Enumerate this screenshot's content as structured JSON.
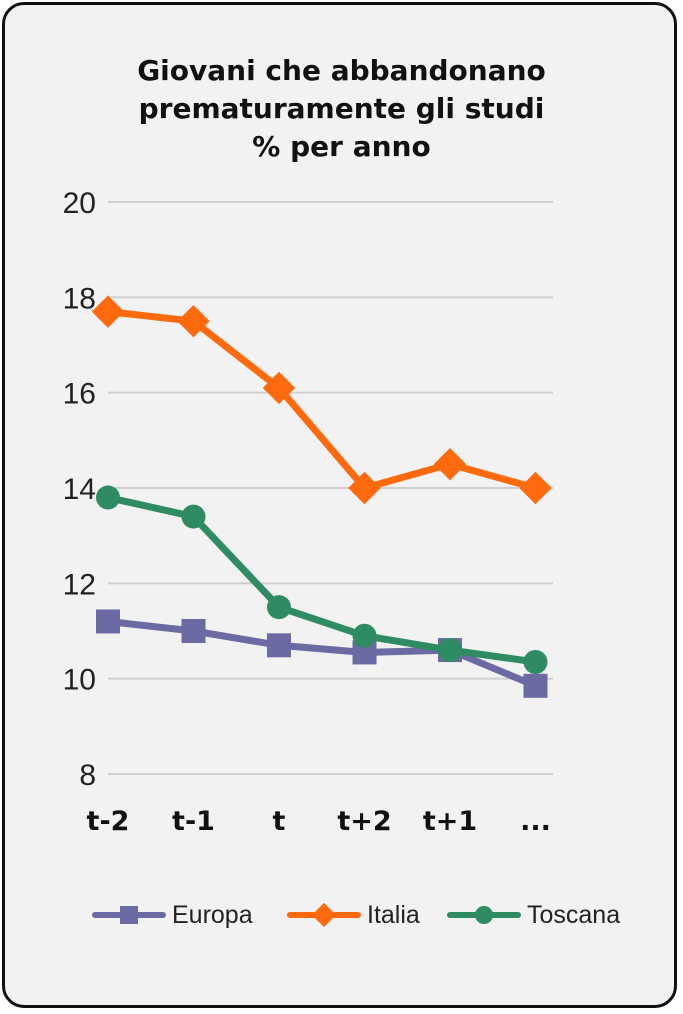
{
  "chart_data": {
    "type": "line",
    "title_lines": [
      "Giovani che abbandonano",
      "prematuramente gli studi",
      "% per anno"
    ],
    "categories": [
      "t-2",
      "t-1",
      "t",
      "t+2",
      "t+1",
      "..."
    ],
    "ylim": [
      8,
      20
    ],
    "yticks": [
      "20",
      "18",
      "16",
      "14",
      "12",
      "10",
      "8"
    ],
    "grid": true,
    "legend_position": "bottom",
    "series": [
      {
        "name": "Europa",
        "color": "#6b6aa3",
        "marker": "square",
        "values": [
          11.2,
          11.0,
          10.7,
          10.55,
          10.6,
          9.85
        ]
      },
      {
        "name": "Italia",
        "color": "#ff6a0f",
        "marker": "diamond",
        "values": [
          17.7,
          17.5,
          16.1,
          14.0,
          14.5,
          14.0
        ]
      },
      {
        "name": "Toscana",
        "color": "#2e8b62",
        "marker": "circle",
        "values": [
          13.8,
          13.4,
          11.5,
          10.9,
          10.6,
          10.35
        ]
      }
    ]
  }
}
